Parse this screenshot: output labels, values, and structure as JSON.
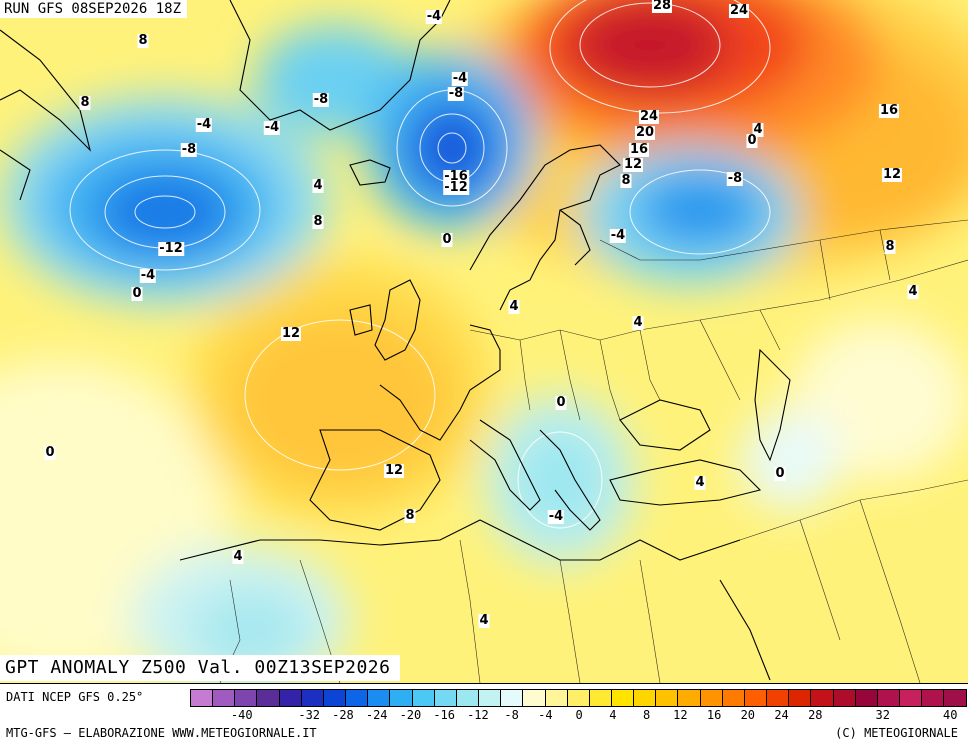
{
  "header": {
    "run_title": "RUN GFS 08SEP2026 18Z"
  },
  "map": {
    "title": "GPT ANOMALY Z500 Val. 00Z13SEP2026",
    "contour_labels": [
      "-4",
      "-4",
      "8",
      "-8",
      "8",
      "-4",
      "-4",
      "-8",
      "-16",
      "-12",
      "-8",
      "-12",
      "-4",
      "0",
      "4",
      "8",
      "28",
      "24",
      "24",
      "20",
      "16",
      "12",
      "8",
      "16",
      "4",
      "0",
      "-8",
      "-4",
      "12",
      "8",
      "12",
      "4",
      "4",
      "0",
      "4",
      "12",
      "0",
      "8",
      "0",
      "-4",
      "4",
      "0",
      "4",
      "4"
    ],
    "anomaly_centers": [
      {
        "name": "Trough west of Greenland / Labrador Sea",
        "min_value": -12
      },
      {
        "name": "Trough near Iceland",
        "min_value": -16
      },
      {
        "name": "Trough over Scandinavia / Western Russia",
        "min_value": -8
      },
      {
        "name": "Ridge over Barents Sea / Northern Russia",
        "max_value": 28
      },
      {
        "name": "Ridge over Bay of Biscay / France",
        "max_value": 12
      },
      {
        "name": "Weak trough over Greece / Balkans",
        "min_value": -4
      }
    ]
  },
  "legend": {
    "data_source": "DATI NCEP GFS 0.25°",
    "tick_labels": [
      "-40",
      "-32",
      "-28",
      "-24",
      "-20",
      "-16",
      "-12",
      "-8",
      "-4",
      "0",
      "4",
      "8",
      "12",
      "16",
      "20",
      "24",
      "28",
      "32",
      "40"
    ],
    "colors": [
      "#c47bd1",
      "#a05bc0",
      "#7d45ad",
      "#5a2d99",
      "#3423a8",
      "#1c2fc0",
      "#0c44d6",
      "#0d66e6",
      "#1b8cf0",
      "#2eaff4",
      "#4cc8f4",
      "#74d9f2",
      "#9ce7f0",
      "#c3f2f2",
      "#e5fafa",
      "#fffcd0",
      "#fff599",
      "#ffef66",
      "#ffe933",
      "#ffe400",
      "#ffd500",
      "#ffc200",
      "#ffac00",
      "#ff9400",
      "#ff7a00",
      "#ff5f00",
      "#f04100",
      "#dc2600",
      "#c4121a",
      "#ad0c2a",
      "#96063a",
      "#b0124d",
      "#c81f5e",
      "#b0124d",
      "#a01048"
    ]
  },
  "footer": {
    "credit_left": "MTG-GFS — ELABORAZIONE WWW.METEOGIORNALE.IT",
    "credit_right": "(C) METEOGIORNALE"
  }
}
